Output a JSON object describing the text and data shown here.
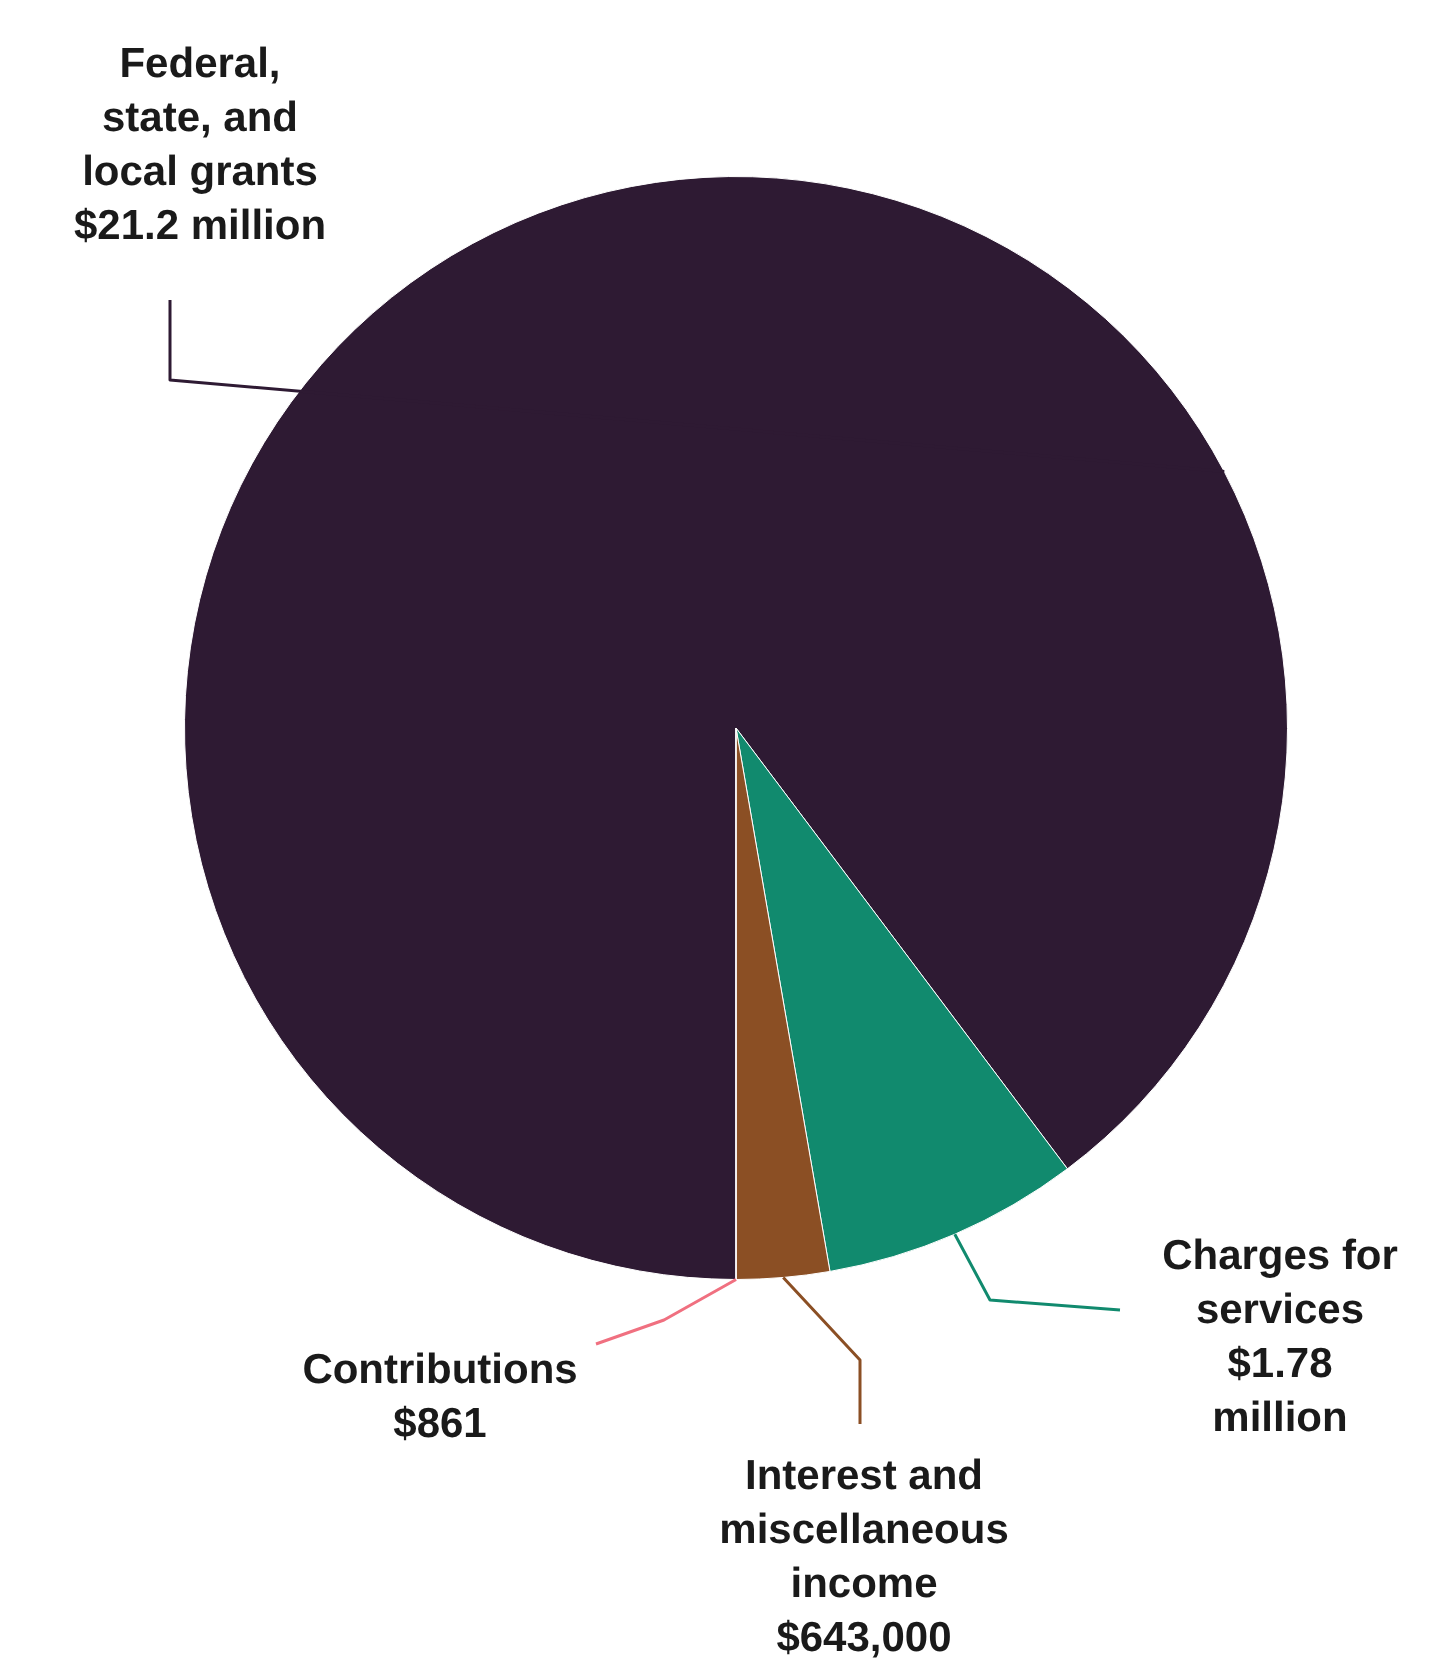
{
  "chart_data": {
    "type": "pie",
    "categories": [
      "Federal, state, and local grants",
      "Charges for services",
      "Interest and miscellaneous income",
      "Contributions"
    ],
    "values": [
      21200000,
      1780000,
      643000,
      861
    ],
    "value_labels": [
      "$21.2 million",
      "$1.78 million",
      "$643,000",
      "$861"
    ],
    "colors": [
      "#2e1a33",
      "#118a6e",
      "#8b4f24",
      "#f07080"
    ],
    "legend": false
  }
}
